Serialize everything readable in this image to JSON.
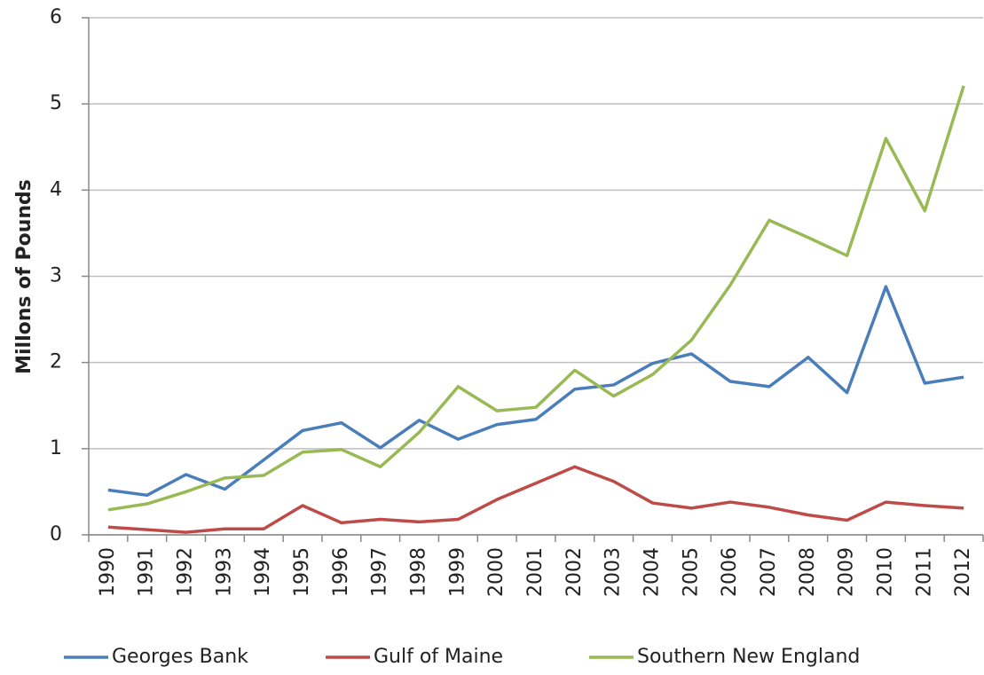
{
  "chart_data": {
    "type": "line",
    "y_label": "Millons of Pounds",
    "categories": [
      "1990",
      "1991",
      "1992",
      "1993",
      "1994",
      "1995",
      "1996",
      "1997",
      "1998",
      "1999",
      "2000",
      "2001",
      "2002",
      "2003",
      "2004",
      "2005",
      "2006",
      "2007",
      "2008",
      "2009",
      "2010",
      "2011",
      "2012"
    ],
    "series": [
      {
        "name": "Georges Bank",
        "color": "#4a7ebb",
        "values": [
          0.52,
          0.46,
          0.7,
          0.53,
          0.87,
          1.21,
          1.3,
          1.01,
          1.33,
          1.11,
          1.28,
          1.34,
          1.69,
          1.74,
          1.99,
          2.1,
          1.78,
          1.72,
          2.06,
          1.65,
          2.88,
          1.76,
          1.83
        ]
      },
      {
        "name": "Gulf of Maine",
        "color": "#be4b48",
        "values": [
          0.09,
          0.06,
          0.03,
          0.07,
          0.07,
          0.34,
          0.14,
          0.18,
          0.15,
          0.18,
          0.41,
          0.6,
          0.79,
          0.62,
          0.37,
          0.31,
          0.38,
          0.32,
          0.23,
          0.17,
          0.38,
          0.34,
          0.31
        ]
      },
      {
        "name": "Southern New England",
        "color": "#98b954",
        "values": [
          0.29,
          0.36,
          0.5,
          0.66,
          0.69,
          0.96,
          0.99,
          0.79,
          1.19,
          1.72,
          1.44,
          1.48,
          1.91,
          1.61,
          1.86,
          2.26,
          2.9,
          3.65,
          3.45,
          3.24,
          4.6,
          3.76,
          5.21
        ]
      }
    ],
    "ylim": [
      0,
      6
    ],
    "yticks": [
      0,
      1,
      2,
      3,
      4,
      5,
      6
    ],
    "grid": true,
    "legend": "bottom"
  }
}
